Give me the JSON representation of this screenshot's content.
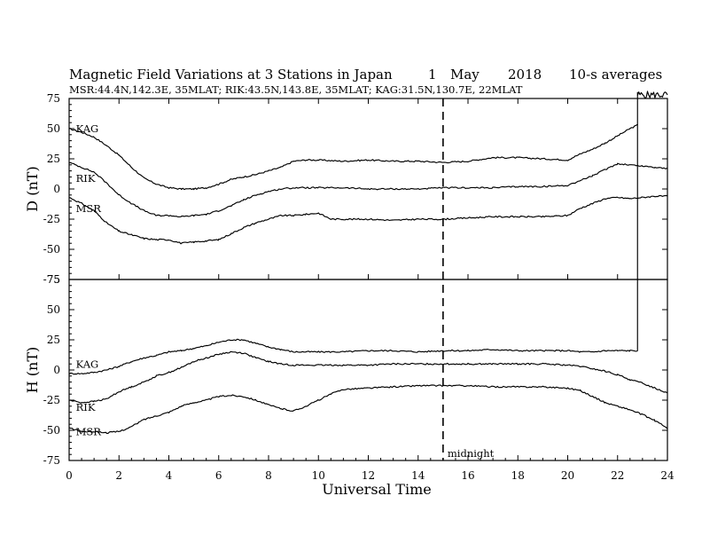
{
  "chart_data": {
    "type": "line",
    "title": "Magnetic Field Variations at 3 Stations in Japan",
    "date": {
      "day": "1",
      "month": "May",
      "year": "2018"
    },
    "averaging": "10-s averages",
    "stations_info": "MSR:44.4N,142.3E, 35MLAT;   RIK:43.5N,143.8E, 35MLAT;   KAG:31.5N,130.7E, 22MLAT",
    "xlabel": "Universal Time",
    "xlim": [
      0,
      24
    ],
    "xticks": [
      0,
      2,
      4,
      6,
      8,
      10,
      12,
      14,
      16,
      18,
      20,
      22,
      24
    ],
    "midnight_label": "midnight",
    "midnight_ut": 15,
    "grid": false,
    "panels": [
      {
        "ylabel": "D (nT)",
        "ylim": [
          -75,
          75
        ],
        "yticks": [
          75,
          50,
          25,
          0,
          -25,
          -50,
          -75
        ],
        "series": [
          {
            "name": "KAG",
            "label_pos": [
              0.2,
              47
            ],
            "x": [
              0,
              0.5,
              1,
              1.5,
              2,
              2.5,
              3,
              3.5,
              4,
              4.5,
              5,
              5.5,
              6,
              6.5,
              7,
              7.5,
              8,
              8.5,
              9,
              9.5,
              10,
              11,
              12,
              13,
              14,
              15,
              16,
              17,
              18,
              19,
              20,
              20.5,
              21,
              21.5,
              22,
              22.5,
              22.8
            ],
            "values": [
              50,
              47,
              43,
              36,
              28,
              18,
              9,
              4,
              1,
              0,
              0,
              1,
              4,
              8,
              10,
              12,
              15,
              18,
              23,
              24,
              24,
              23,
              24,
              23,
              23,
              22,
              23,
              26,
              26,
              25,
              24,
              29,
              33,
              38,
              44,
              50,
              53
            ]
          },
          {
            "name": "RIK",
            "label_pos": [
              0.2,
              6
            ],
            "x": [
              0,
              0.5,
              1,
              1.5,
              2,
              2.5,
              3,
              3.5,
              4,
              4.5,
              5,
              5.5,
              6,
              6.5,
              7,
              7.5,
              8,
              8.5,
              9,
              9.5,
              10,
              11,
              12,
              13,
              14,
              15,
              16,
              17,
              18,
              19,
              20,
              20.5,
              21,
              21.5,
              22,
              22.5,
              23,
              23.5,
              24
            ],
            "values": [
              22,
              18,
              14,
              5,
              -5,
              -12,
              -18,
              -22,
              -22,
              -23,
              -22,
              -21,
              -18,
              -14,
              -9,
              -5,
              -2,
              0,
              1,
              1,
              1,
              1,
              0,
              0,
              0,
              1,
              1,
              1,
              2,
              2,
              3,
              7,
              11,
              16,
              21,
              20,
              19,
              18,
              17
            ]
          },
          {
            "name": "MSR",
            "label_pos": [
              0.2,
              -19
            ],
            "x": [
              0,
              0.5,
              1,
              1.5,
              2,
              2.5,
              3,
              3.5,
              4,
              4.5,
              5,
              5.5,
              6,
              6.5,
              7,
              7.5,
              8,
              8.5,
              9,
              9.5,
              10,
              10.5,
              11,
              12,
              13,
              14,
              15,
              16,
              17,
              18,
              19,
              20,
              20.5,
              21,
              21.5,
              22,
              22.5,
              23,
              23.5,
              24
            ],
            "values": [
              -7,
              -12,
              -18,
              -28,
              -35,
              -38,
              -41,
              -42,
              -42,
              -45,
              -44,
              -43,
              -42,
              -37,
              -32,
              -28,
              -25,
              -22,
              -22,
              -21,
              -20,
              -25,
              -25,
              -25,
              -26,
              -25,
              -25,
              -24,
              -23,
              -23,
              -23,
              -22,
              -16,
              -12,
              -8,
              -7,
              -8,
              -7,
              -6,
              -6
            ]
          }
        ]
      },
      {
        "ylabel": "H (nT)",
        "ylim": [
          -75,
          75
        ],
        "yticks": [
          75,
          50,
          25,
          0,
          -25,
          -50,
          -75
        ],
        "series": [
          {
            "name": "KAG",
            "label_pos": [
              0.2,
              2
            ],
            "x": [
              0,
              0.5,
              1,
              1.5,
              2,
              2.5,
              3,
              3.5,
              4,
              4.5,
              5,
              5.5,
              6,
              6.5,
              7,
              7.5,
              8,
              8.5,
              9,
              10,
              11,
              12,
              13,
              14,
              15,
              16,
              17,
              18,
              19,
              20,
              20.5,
              21,
              21.5,
              22,
              22.5,
              22.8
            ],
            "values": [
              -3,
              -3,
              -2,
              0,
              3,
              7,
              10,
              12,
              15,
              16,
              18,
              20,
              23,
              25,
              25,
              22,
              19,
              17,
              15,
              15,
              15,
              16,
              16,
              15,
              16,
              16,
              17,
              16,
              16,
              16,
              15,
              15,
              16,
              16,
              16,
              16
            ]
          },
          {
            "name": "RIK",
            "label_pos": [
              0.2,
              -34
            ],
            "x": [
              0,
              0.5,
              1,
              1.5,
              2,
              2.5,
              3,
              3.5,
              4,
              4.5,
              5,
              5.5,
              6,
              6.5,
              7,
              7.5,
              8,
              8.5,
              9,
              10,
              11,
              12,
              13,
              14,
              15,
              16,
              17,
              18,
              19,
              20,
              20.5,
              21,
              21.5,
              22,
              22.5,
              23,
              23.5,
              24
            ],
            "values": [
              -25,
              -27,
              -26,
              -24,
              -18,
              -14,
              -10,
              -5,
              -2,
              2,
              7,
              10,
              13,
              15,
              14,
              10,
              7,
              5,
              4,
              4,
              4,
              4,
              5,
              5,
              5,
              5,
              5,
              5,
              5,
              4,
              3,
              1,
              -1,
              -4,
              -8,
              -11,
              -15,
              -19
            ]
          },
          {
            "name": "MSR",
            "label_pos": [
              0.2,
              -54
            ],
            "x": [
              0,
              0.5,
              1,
              1.5,
              2,
              2.5,
              3,
              3.5,
              4,
              4.5,
              5,
              5.5,
              6,
              6.5,
              7,
              7.5,
              8,
              8.5,
              9,
              9.5,
              10,
              10.5,
              11,
              12,
              13,
              14,
              15,
              16,
              17,
              18,
              19,
              20,
              20.5,
              21,
              21.5,
              22,
              22.5,
              23,
              23.5,
              24
            ],
            "values": [
              -48,
              -51,
              -51,
              -52,
              -51,
              -47,
              -41,
              -38,
              -35,
              -30,
              -27,
              -25,
              -22,
              -21,
              -22,
              -25,
              -29,
              -32,
              -34,
              -30,
              -25,
              -20,
              -16,
              -15,
              -14,
              -13,
              -13,
              -13,
              -14,
              -14,
              -14,
              -15,
              -17,
              -22,
              -27,
              -30,
              -33,
              -37,
              -42,
              -48
            ]
          }
        ]
      }
    ]
  }
}
